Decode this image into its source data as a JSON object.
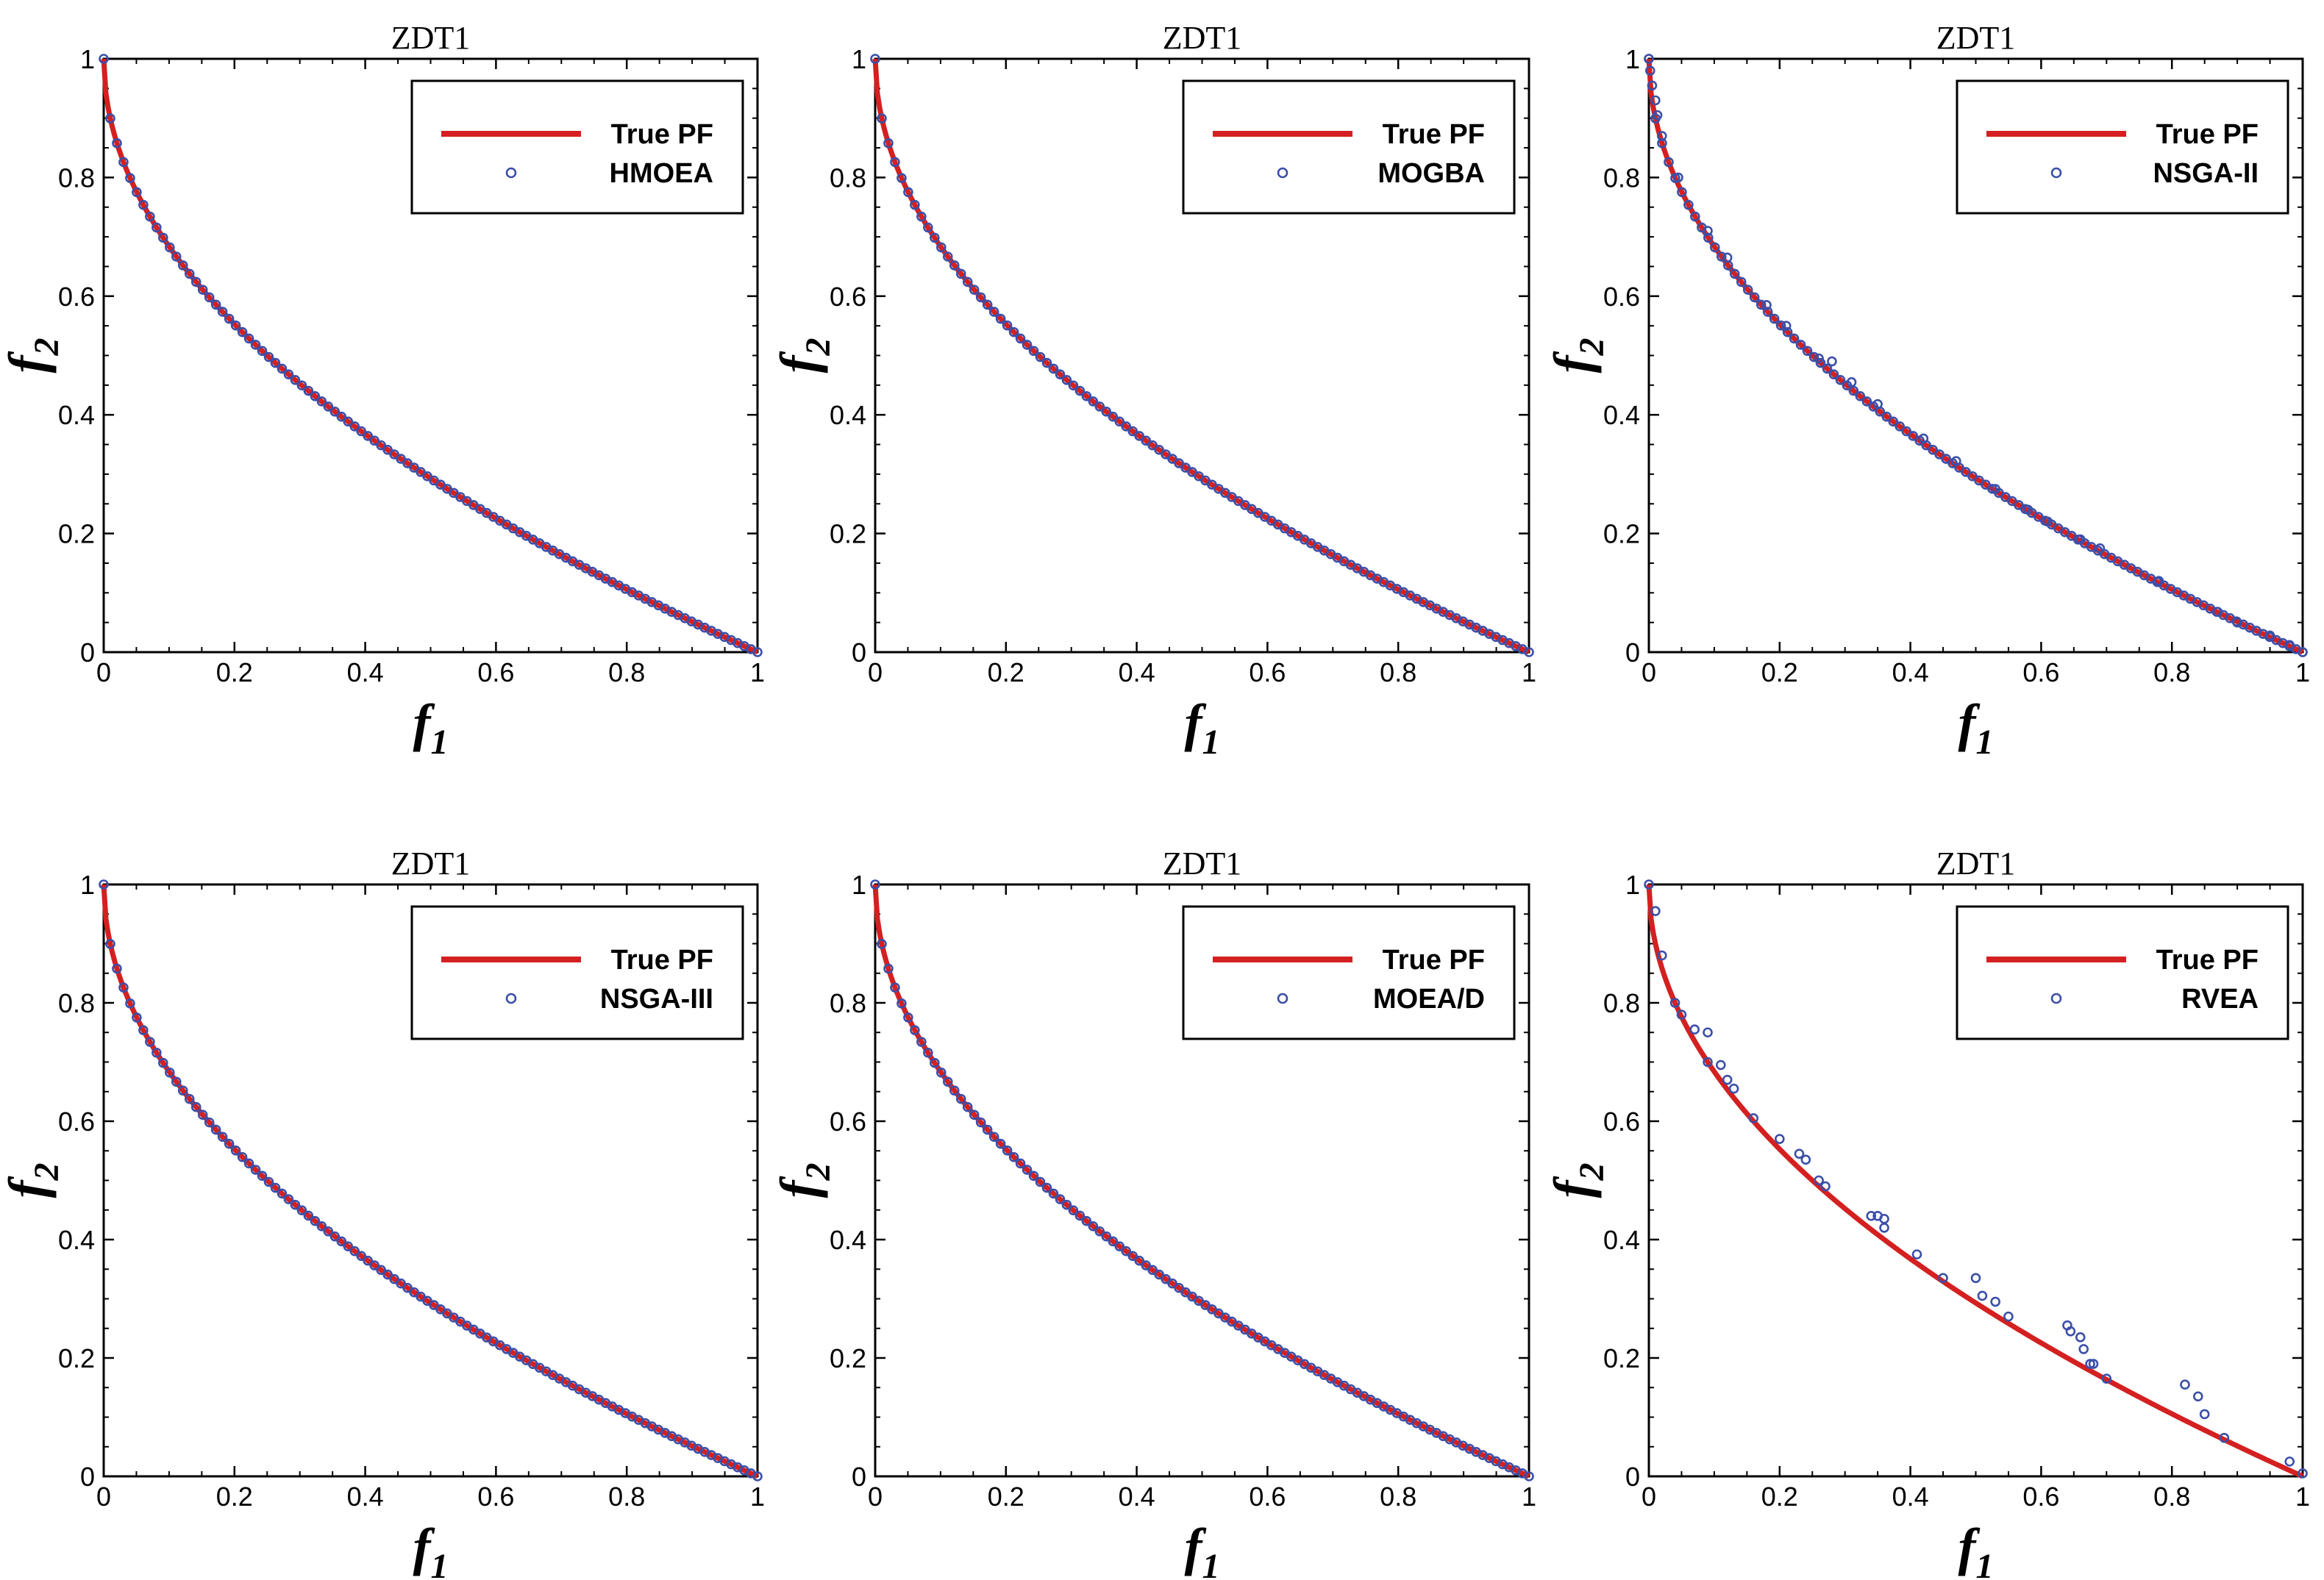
{
  "colors": {
    "true_pf": "#d42020",
    "markers": "#3b4fa8",
    "axes": "#000000",
    "background": "#ffffff"
  },
  "axis_label_text": {
    "x_base": "f",
    "x_sub": "1",
    "y_base": "f",
    "y_sub": "2"
  },
  "chart_data": [
    {
      "type": "scatter",
      "title": "ZDT1",
      "xlabel": "f1",
      "ylabel": "f2",
      "xlim": [
        0,
        1
      ],
      "ylim": [
        0,
        1
      ],
      "xticks": [
        "0",
        "0.2",
        "0.4",
        "0.6",
        "0.8",
        "1"
      ],
      "yticks": [
        "0",
        "0.2",
        "0.4",
        "0.6",
        "0.8",
        "1"
      ],
      "legend_position": "top-right",
      "series": [
        {
          "name": "True PF",
          "kind": "line",
          "equation": "f2 = 1 - sqrt(f1)",
          "x_range": [
            0,
            1
          ]
        },
        {
          "name": "HMOEA",
          "kind": "markers",
          "points_on_front": 100,
          "x_range": [
            0,
            1
          ],
          "offsets": []
        }
      ]
    },
    {
      "type": "scatter",
      "title": "ZDT1",
      "xlabel": "f1",
      "ylabel": "f2",
      "xlim": [
        0,
        1
      ],
      "ylim": [
        0,
        1
      ],
      "xticks": [
        "0",
        "0.2",
        "0.4",
        "0.6",
        "0.8",
        "1"
      ],
      "yticks": [
        "0",
        "0.2",
        "0.4",
        "0.6",
        "0.8",
        "1"
      ],
      "legend_position": "top-right",
      "series": [
        {
          "name": "True PF",
          "kind": "line",
          "equation": "f2 = 1 - sqrt(f1)",
          "x_range": [
            0,
            1
          ]
        },
        {
          "name": "MOGBA",
          "kind": "markers",
          "points_on_front": 100,
          "x_range": [
            0,
            1
          ],
          "offsets": []
        }
      ]
    },
    {
      "type": "scatter",
      "title": "ZDT1",
      "xlabel": "f1",
      "ylabel": "f2",
      "xlim": [
        0,
        1
      ],
      "ylim": [
        0,
        1
      ],
      "xticks": [
        "0",
        "0.2",
        "0.4",
        "0.6",
        "0.8",
        "1"
      ],
      "yticks": [
        "0",
        "0.2",
        "0.4",
        "0.6",
        "0.8",
        "1"
      ],
      "legend_position": "top-right",
      "series": [
        {
          "name": "True PF",
          "kind": "line",
          "equation": "f2 = 1 - sqrt(f1)",
          "x_range": [
            0,
            1
          ]
        },
        {
          "name": "NSGA-II",
          "kind": "markers",
          "points_on_front": 100,
          "x_range": [
            0,
            1
          ],
          "offsets": [],
          "extra_points": [
            {
              "x": 0.0,
              "y": 1.0
            },
            {
              "x": 0.002,
              "y": 0.98
            },
            {
              "x": 0.005,
              "y": 0.955
            },
            {
              "x": 0.01,
              "y": 0.93
            },
            {
              "x": 0.013,
              "y": 0.905
            },
            {
              "x": 0.02,
              "y": 0.87
            },
            {
              "x": 0.045,
              "y": 0.8
            },
            {
              "x": 0.09,
              "y": 0.71
            },
            {
              "x": 0.12,
              "y": 0.665
            },
            {
              "x": 0.18,
              "y": 0.585
            },
            {
              "x": 0.21,
              "y": 0.55
            },
            {
              "x": 0.26,
              "y": 0.495
            },
            {
              "x": 0.28,
              "y": 0.49
            },
            {
              "x": 0.31,
              "y": 0.455
            },
            {
              "x": 0.35,
              "y": 0.418
            },
            {
              "x": 0.42,
              "y": 0.36
            },
            {
              "x": 0.47,
              "y": 0.322
            },
            {
              "x": 0.53,
              "y": 0.275
            },
            {
              "x": 0.58,
              "y": 0.24
            },
            {
              "x": 0.61,
              "y": 0.22
            },
            {
              "x": 0.66,
              "y": 0.19
            },
            {
              "x": 0.69,
              "y": 0.175
            },
            {
              "x": 0.78,
              "y": 0.12
            },
            {
              "x": 0.87,
              "y": 0.068
            },
            {
              "x": 0.9,
              "y": 0.05
            },
            {
              "x": 0.95,
              "y": 0.028
            },
            {
              "x": 0.98,
              "y": 0.012
            },
            {
              "x": 1.0,
              "y": 0.0
            }
          ]
        }
      ]
    },
    {
      "type": "scatter",
      "title": "ZDT1",
      "xlabel": "f1",
      "ylabel": "f2",
      "xlim": [
        0,
        1
      ],
      "ylim": [
        0,
        1
      ],
      "xticks": [
        "0",
        "0.2",
        "0.4",
        "0.6",
        "0.8",
        "1"
      ],
      "yticks": [
        "0",
        "0.2",
        "0.4",
        "0.6",
        "0.8",
        "1"
      ],
      "legend_position": "top-right",
      "series": [
        {
          "name": "True PF",
          "kind": "line",
          "equation": "f2 = 1 - sqrt(f1)",
          "x_range": [
            0,
            1
          ]
        },
        {
          "name": "NSGA-III",
          "kind": "markers",
          "points_on_front": 100,
          "x_range": [
            0,
            1
          ],
          "offsets": []
        }
      ]
    },
    {
      "type": "scatter",
      "title": "ZDT1",
      "xlabel": "f1",
      "ylabel": "f2",
      "xlim": [
        0,
        1
      ],
      "ylim": [
        0,
        1
      ],
      "xticks": [
        "0",
        "0.2",
        "0.4",
        "0.6",
        "0.8",
        "1"
      ],
      "yticks": [
        "0",
        "0.2",
        "0.4",
        "0.6",
        "0.8",
        "1"
      ],
      "legend_position": "top-right",
      "series": [
        {
          "name": "True PF",
          "kind": "line",
          "equation": "f2 = 1 - sqrt(f1)",
          "x_range": [
            0,
            1
          ]
        },
        {
          "name": "MOEA/D",
          "kind": "markers",
          "points_on_front": 100,
          "x_range": [
            0,
            1
          ],
          "offsets": []
        }
      ]
    },
    {
      "type": "scatter",
      "title": "ZDT1",
      "xlabel": "f1",
      "ylabel": "f2",
      "xlim": [
        0,
        1
      ],
      "ylim": [
        0,
        1
      ],
      "xticks": [
        "0",
        "0.2",
        "0.4",
        "0.6",
        "0.8",
        "1"
      ],
      "yticks": [
        "0",
        "0.2",
        "0.4",
        "0.6",
        "0.8",
        "1"
      ],
      "legend_position": "top-right",
      "series": [
        {
          "name": "True PF",
          "kind": "line",
          "equation": "f2 = 1 - sqrt(f1)",
          "x_range": [
            0,
            1
          ]
        },
        {
          "name": "RVEA",
          "kind": "markers",
          "points_on_front": 0,
          "x_range": [
            0,
            1
          ],
          "extra_points": [
            {
              "x": 0.0,
              "y": 1.0
            },
            {
              "x": 0.01,
              "y": 0.955
            },
            {
              "x": 0.02,
              "y": 0.88
            },
            {
              "x": 0.04,
              "y": 0.8
            },
            {
              "x": 0.05,
              "y": 0.78
            },
            {
              "x": 0.07,
              "y": 0.755
            },
            {
              "x": 0.09,
              "y": 0.75
            },
            {
              "x": 0.09,
              "y": 0.7
            },
            {
              "x": 0.11,
              "y": 0.695
            },
            {
              "x": 0.12,
              "y": 0.67
            },
            {
              "x": 0.13,
              "y": 0.655
            },
            {
              "x": 0.16,
              "y": 0.605
            },
            {
              "x": 0.2,
              "y": 0.57
            },
            {
              "x": 0.23,
              "y": 0.545
            },
            {
              "x": 0.24,
              "y": 0.535
            },
            {
              "x": 0.26,
              "y": 0.5
            },
            {
              "x": 0.27,
              "y": 0.49
            },
            {
              "x": 0.34,
              "y": 0.44
            },
            {
              "x": 0.35,
              "y": 0.44
            },
            {
              "x": 0.36,
              "y": 0.42
            },
            {
              "x": 0.36,
              "y": 0.435
            },
            {
              "x": 0.41,
              "y": 0.375
            },
            {
              "x": 0.45,
              "y": 0.335
            },
            {
              "x": 0.5,
              "y": 0.335
            },
            {
              "x": 0.51,
              "y": 0.305
            },
            {
              "x": 0.53,
              "y": 0.295
            },
            {
              "x": 0.55,
              "y": 0.27
            },
            {
              "x": 0.64,
              "y": 0.255
            },
            {
              "x": 0.645,
              "y": 0.245
            },
            {
              "x": 0.66,
              "y": 0.235
            },
            {
              "x": 0.665,
              "y": 0.215
            },
            {
              "x": 0.675,
              "y": 0.19
            },
            {
              "x": 0.68,
              "y": 0.19
            },
            {
              "x": 0.7,
              "y": 0.165
            },
            {
              "x": 0.82,
              "y": 0.155
            },
            {
              "x": 0.84,
              "y": 0.135
            },
            {
              "x": 0.85,
              "y": 0.105
            },
            {
              "x": 0.88,
              "y": 0.065
            },
            {
              "x": 0.98,
              "y": 0.025
            },
            {
              "x": 1.0,
              "y": 0.005
            }
          ]
        }
      ]
    }
  ]
}
